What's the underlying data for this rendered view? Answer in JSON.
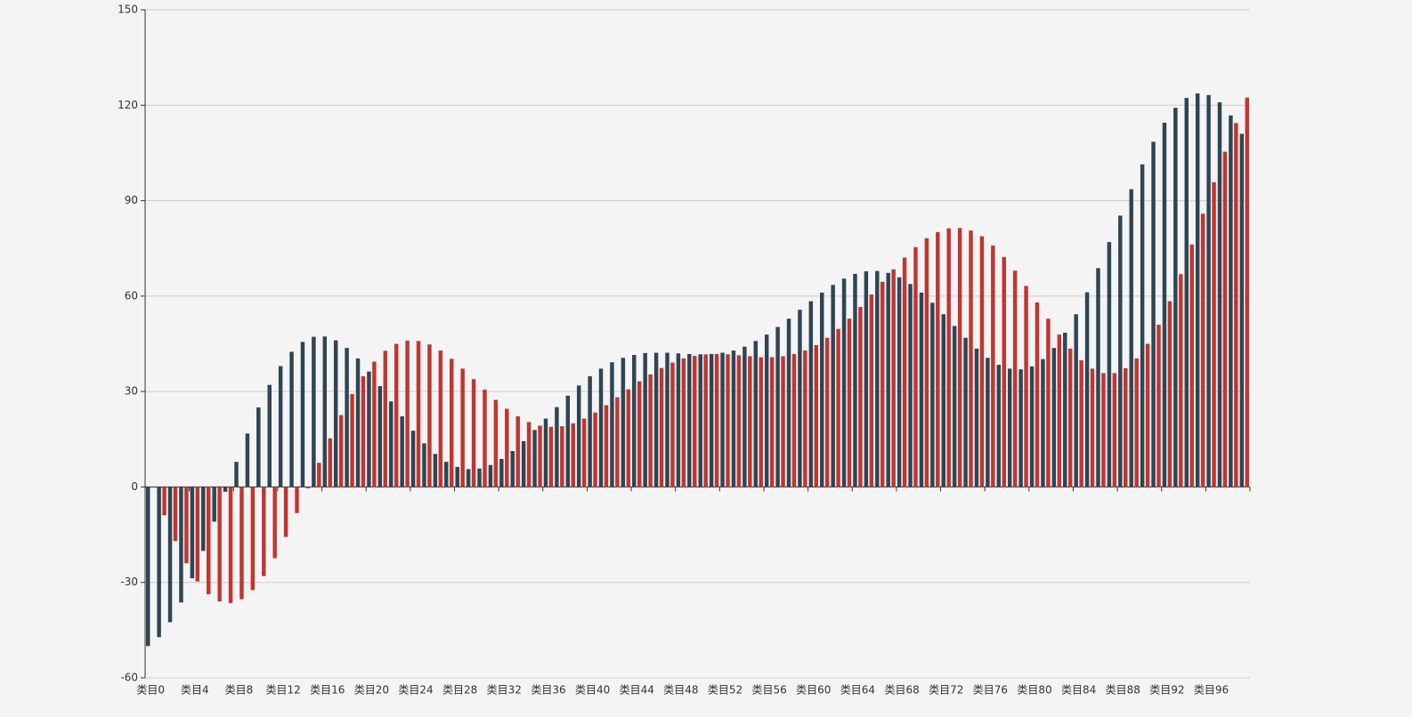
{
  "chart_data": {
    "type": "bar",
    "categories": [
      "类目0",
      null,
      null,
      null,
      "类目4",
      null,
      null,
      null,
      "类目8",
      null,
      null,
      null,
      "类目12",
      null,
      null,
      null,
      "类目16",
      null,
      null,
      null,
      "类目20",
      null,
      null,
      null,
      "类目24",
      null,
      null,
      null,
      "类目28",
      null,
      null,
      null,
      "类目32",
      null,
      null,
      null,
      "类目36",
      null,
      null,
      null,
      "类目40",
      null,
      null,
      null,
      "类目44",
      null,
      null,
      null,
      "类目48",
      null,
      null,
      null,
      "类目52",
      null,
      null,
      null,
      "类目56",
      null,
      null,
      null,
      "类目60",
      null,
      null,
      null,
      "类目64",
      null,
      null,
      null,
      "类目68",
      null,
      null,
      null,
      "类目72",
      null,
      null,
      null,
      "类目76",
      null,
      null,
      null,
      "类目80",
      null,
      null,
      null,
      "类目84",
      null,
      null,
      null,
      "类目88",
      null,
      null,
      null,
      "类目92",
      null,
      null,
      null,
      "类目96",
      null,
      null,
      null
    ],
    "series": [
      {
        "color": "#2f4554",
        "values": [
          -50,
          -47.2,
          -42.5,
          -36.3,
          -28.7,
          -20.1,
          -10.9,
          -1.5,
          7.9,
          16.8,
          25.0,
          32.1,
          38.0,
          42.5,
          45.6,
          47.2,
          47.3,
          46.1,
          43.7,
          40.4,
          36.3,
          31.7,
          26.9,
          22.2,
          17.7,
          13.7,
          10.4,
          7.9,
          6.3,
          5.6,
          5.8,
          6.9,
          8.8,
          11.3,
          14.4,
          17.9,
          21.5,
          25.1,
          28.7,
          31.9,
          34.8,
          37.2,
          39.2,
          40.6,
          41.5,
          42.1,
          42.2,
          42.2,
          42.0,
          41.8,
          41.7,
          41.8,
          42.2,
          42.9,
          44.1,
          45.9,
          47.9,
          50.3,
          52.9,
          55.7,
          58.4,
          61.1,
          63.5,
          65.5,
          67.0,
          67.8,
          67.9,
          67.3,
          65.9,
          63.8,
          61.1,
          57.9,
          54.3,
          50.6,
          46.9,
          43.5,
          40.6,
          38.4,
          37.2,
          37.0,
          37.9,
          40.2,
          43.7,
          48.5,
          54.3,
          61.2,
          68.8,
          77.0,
          85.3,
          93.6,
          101.4,
          108.5,
          114.5,
          119.2,
          122.3,
          123.7,
          123.2,
          120.9,
          116.8,
          111.0
        ]
      },
      {
        "color": "#c23531",
        "values": [
          0,
          -8.9,
          -17.0,
          -24.0,
          -29.7,
          -33.7,
          -36.0,
          -36.5,
          -35.3,
          -32.4,
          -28.0,
          -22.4,
          -15.7,
          -8.2,
          -0.4,
          7.6,
          15.3,
          22.6,
          29.2,
          34.8,
          39.4,
          42.8,
          45.0,
          46.0,
          45.9,
          44.8,
          42.9,
          40.3,
          37.2,
          33.9,
          30.6,
          27.4,
          24.6,
          22.2,
          20.4,
          19.3,
          18.9,
          19.1,
          20.0,
          21.5,
          23.4,
          25.7,
          28.2,
          30.7,
          33.2,
          35.4,
          37.4,
          39.1,
          40.4,
          41.2,
          41.7,
          41.8,
          41.7,
          41.4,
          41.1,
          40.8,
          40.8,
          41.1,
          41.8,
          42.9,
          44.6,
          46.9,
          49.7,
          52.9,
          56.6,
          60.5,
          64.5,
          68.4,
          72.1,
          75.4,
          78.2,
          80.1,
          81.3,
          81.4,
          80.6,
          78.8,
          75.9,
          72.3,
          68.0,
          63.2,
          58.0,
          52.9,
          47.9,
          43.5,
          39.8,
          37.2,
          35.8,
          35.8,
          37.3,
          40.4,
          45.0,
          51.0,
          58.4,
          66.9,
          76.2,
          85.9,
          95.8,
          105.4,
          114.4,
          122.4
        ]
      }
    ],
    "ylim": [
      -60,
      150
    ],
    "yticks": [
      -60,
      -30,
      0,
      30,
      60,
      90,
      120,
      150
    ],
    "grid": true
  }
}
